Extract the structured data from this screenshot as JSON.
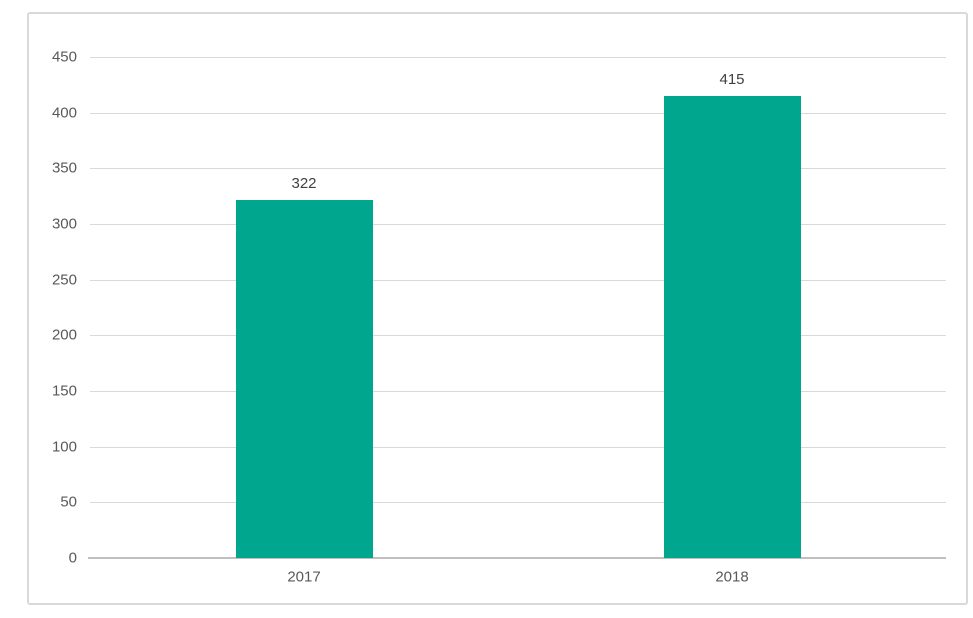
{
  "chart_data": {
    "type": "bar",
    "title": "",
    "xlabel": "",
    "ylabel": "",
    "categories": [
      "2017",
      "2018"
    ],
    "values": [
      322,
      415
    ],
    "data_labels": [
      "322",
      "415"
    ],
    "yticks": [
      0,
      50,
      100,
      150,
      200,
      250,
      300,
      350,
      400,
      450
    ],
    "ylim": [
      0,
      450
    ],
    "grid": true,
    "legend": "none",
    "colors": {
      "bar_fill": "#00A78E",
      "axis_label": "#595959",
      "data_label": "#404040",
      "gridline": "#D9D9D9",
      "axis_line": "#BFBFBF",
      "chart_border": "#D9D9D9",
      "background": "#FFFFFF"
    }
  }
}
